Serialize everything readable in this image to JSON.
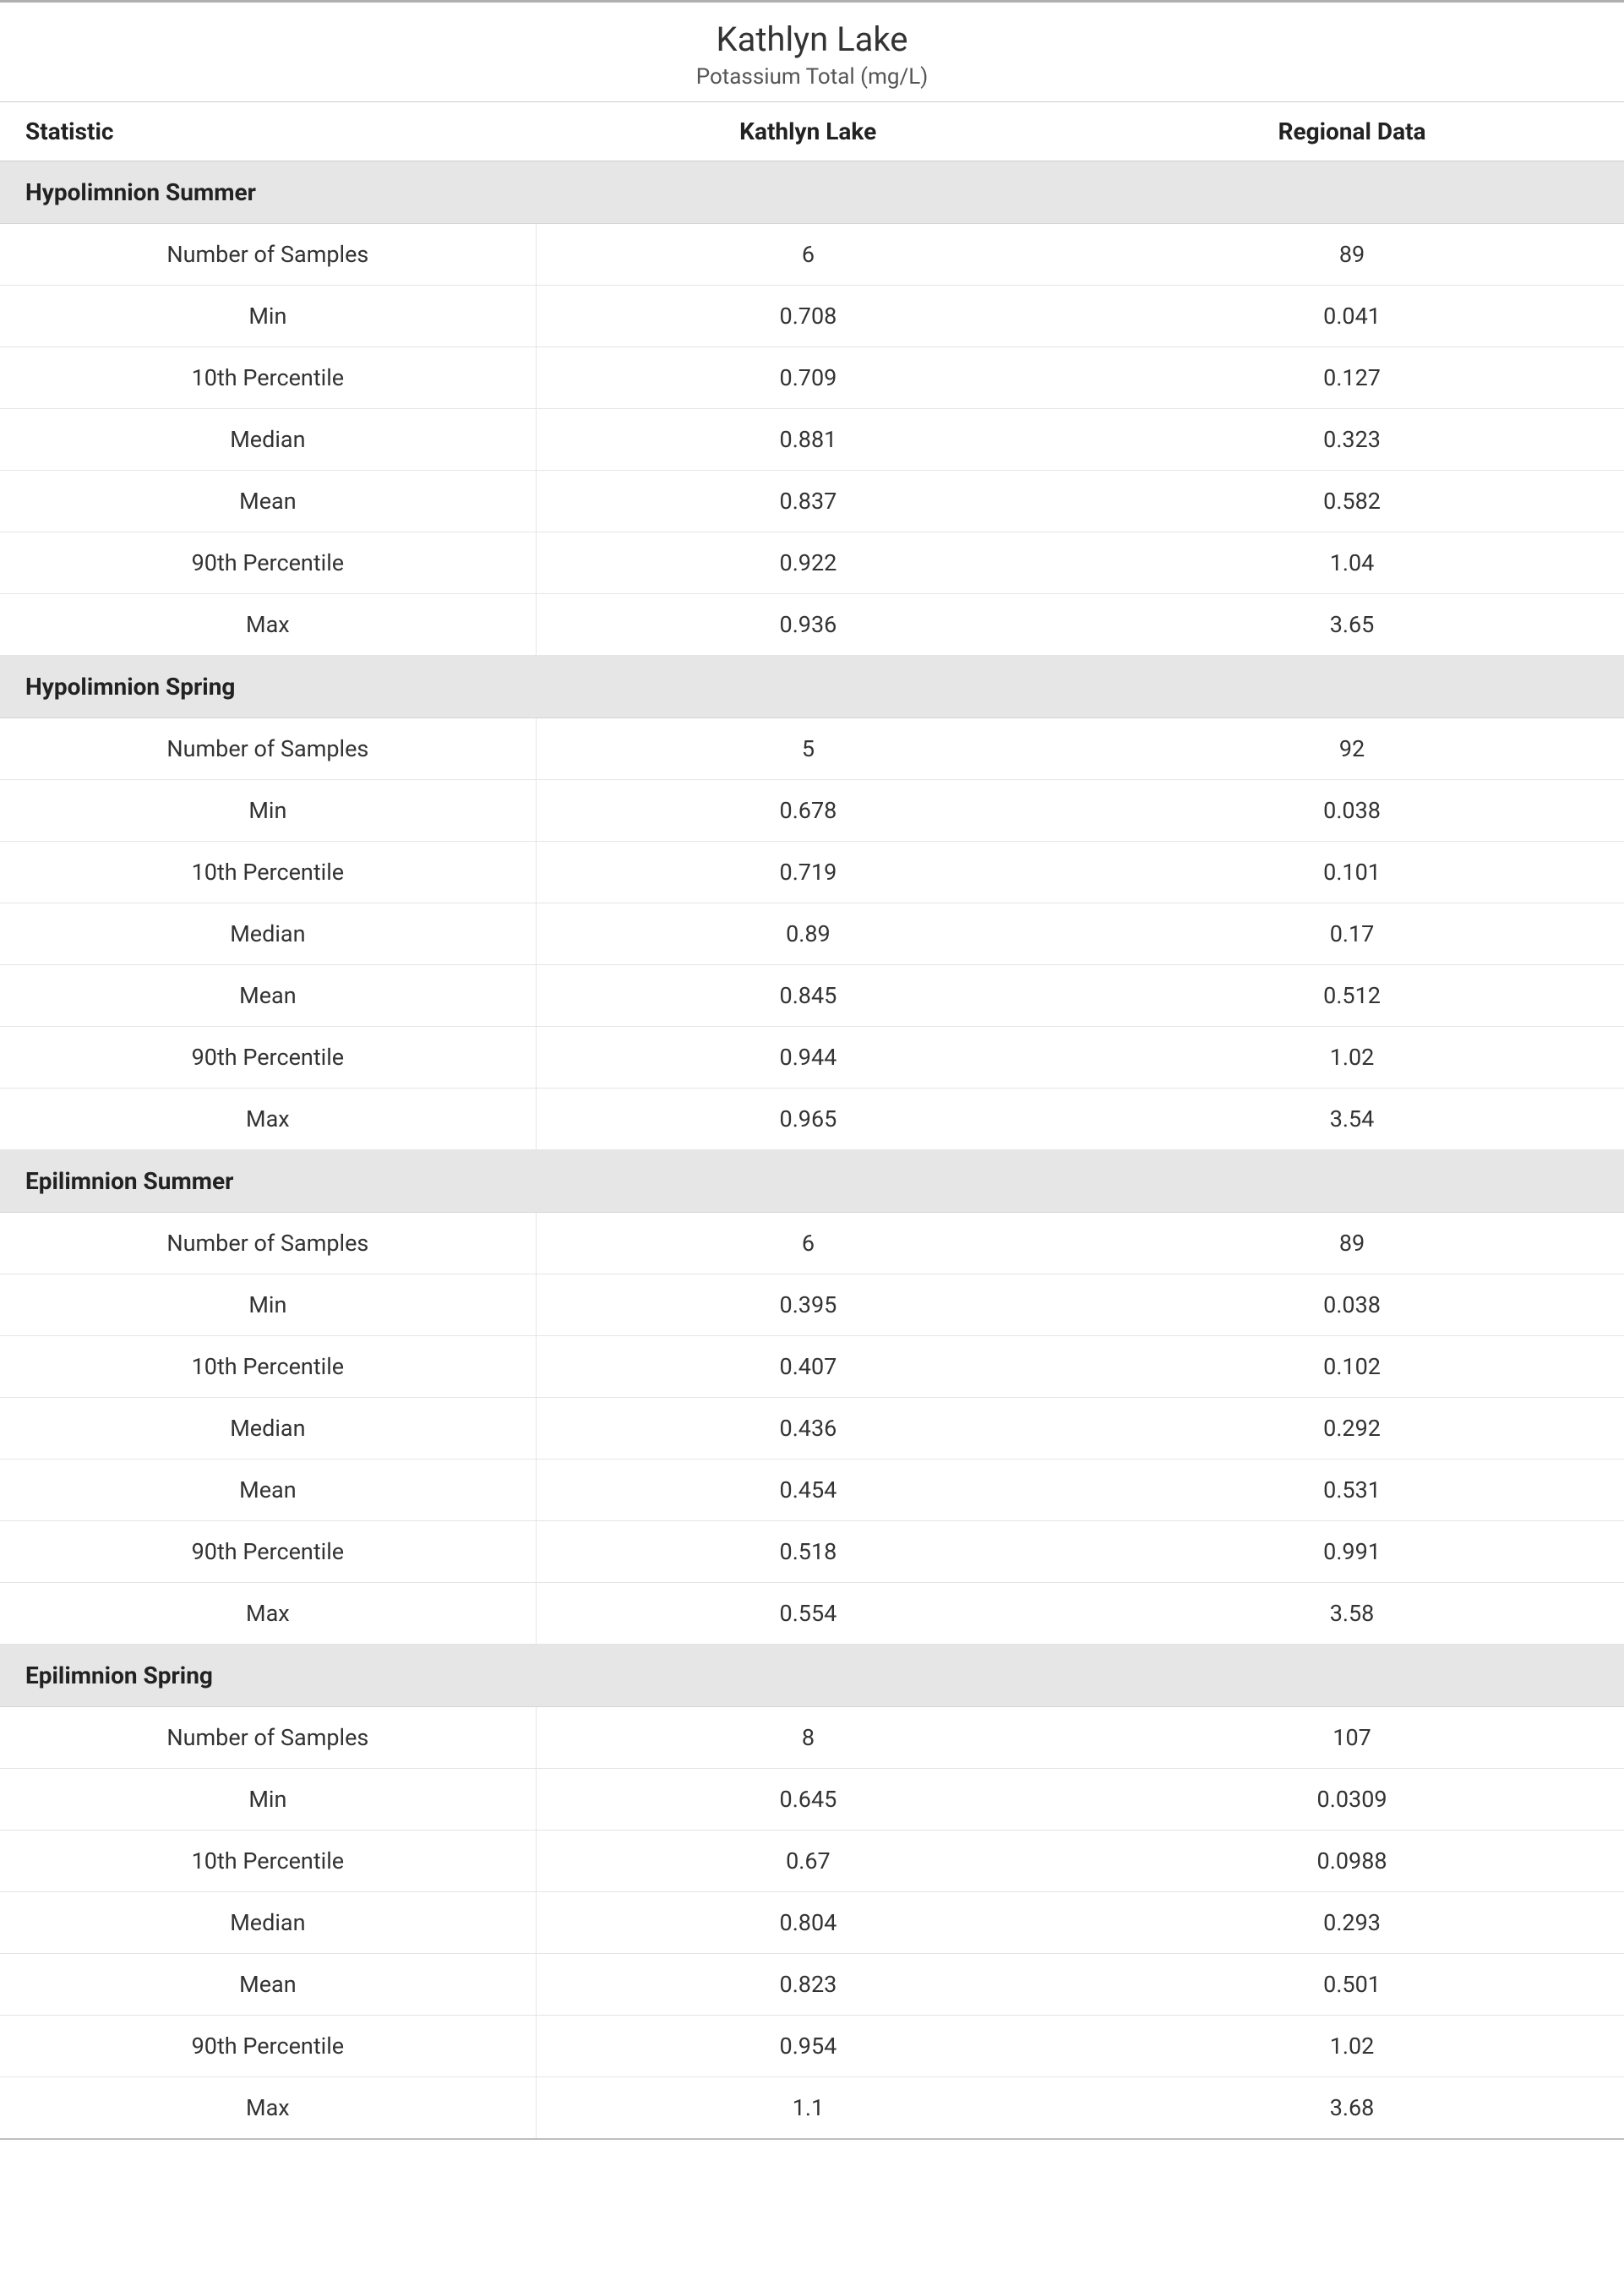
{
  "title": "Kathlyn Lake",
  "subtitle": "Potassium Total (mg/L)",
  "columns": [
    "Statistic",
    "Kathlyn Lake",
    "Regional Data"
  ],
  "stat_labels": [
    "Number of Samples",
    "Min",
    "10th Percentile",
    "Median",
    "Mean",
    "90th Percentile",
    "Max"
  ],
  "sections": [
    {
      "name": "Hypolimnion Summer",
      "rows": [
        [
          "6",
          "89"
        ],
        [
          "0.708",
          "0.041"
        ],
        [
          "0.709",
          "0.127"
        ],
        [
          "0.881",
          "0.323"
        ],
        [
          "0.837",
          "0.582"
        ],
        [
          "0.922",
          "1.04"
        ],
        [
          "0.936",
          "3.65"
        ]
      ]
    },
    {
      "name": "Hypolimnion Spring",
      "rows": [
        [
          "5",
          "92"
        ],
        [
          "0.678",
          "0.038"
        ],
        [
          "0.719",
          "0.101"
        ],
        [
          "0.89",
          "0.17"
        ],
        [
          "0.845",
          "0.512"
        ],
        [
          "0.944",
          "1.02"
        ],
        [
          "0.965",
          "3.54"
        ]
      ]
    },
    {
      "name": "Epilimnion Summer",
      "rows": [
        [
          "6",
          "89"
        ],
        [
          "0.395",
          "0.038"
        ],
        [
          "0.407",
          "0.102"
        ],
        [
          "0.436",
          "0.292"
        ],
        [
          "0.454",
          "0.531"
        ],
        [
          "0.518",
          "0.991"
        ],
        [
          "0.554",
          "3.58"
        ]
      ]
    },
    {
      "name": "Epilimnion Spring",
      "rows": [
        [
          "8",
          "107"
        ],
        [
          "0.645",
          "0.0309"
        ],
        [
          "0.67",
          "0.0988"
        ],
        [
          "0.804",
          "0.293"
        ],
        [
          "0.823",
          "0.501"
        ],
        [
          "0.954",
          "1.02"
        ],
        [
          "1.1",
          "3.68"
        ]
      ]
    }
  ],
  "colors": {
    "top_rule": "#b0b0b0",
    "section_bg": "#e6e6e6",
    "row_border": "#e5e5e5",
    "header_border": "#cccccc",
    "bottom_rule": "#bfbfbf",
    "text": "#333333",
    "background": "#ffffff"
  },
  "typography": {
    "title_fontsize": 40,
    "subtitle_fontsize": 26,
    "header_fontsize": 28,
    "cell_fontsize": 27,
    "font_family": "Segoe UI"
  }
}
